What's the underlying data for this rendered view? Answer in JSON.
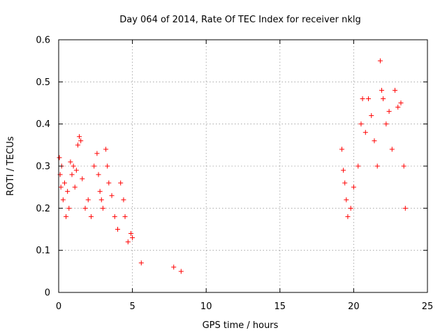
{
  "chart_data": {
    "type": "scatter",
    "title": "Day 064 of 2014, Rate Of TEC Index for receiver nklg",
    "xlabel": "GPS time / hours",
    "ylabel": "ROTI / TECUs",
    "xlim": [
      0,
      25
    ],
    "ylim": [
      0,
      0.6
    ],
    "xticks": [
      0,
      5,
      10,
      15,
      20,
      25
    ],
    "yticks": [
      0,
      0.1,
      0.2,
      0.3,
      0.4,
      0.5,
      0.6
    ],
    "x_tick_labels": [
      "0",
      "5",
      "10",
      "15",
      "20",
      "25"
    ],
    "y_tick_labels": [
      "0",
      "0.1",
      "0.2",
      "0.3",
      "0.4",
      "0.5",
      "0.6"
    ],
    "grid": true,
    "marker": "+",
    "color": "#ff0000",
    "series": [
      {
        "name": "ROTI",
        "points": [
          [
            0.05,
            0.32
          ],
          [
            0.1,
            0.28
          ],
          [
            0.15,
            0.25
          ],
          [
            0.2,
            0.3
          ],
          [
            0.3,
            0.22
          ],
          [
            0.4,
            0.26
          ],
          [
            0.5,
            0.18
          ],
          [
            0.6,
            0.24
          ],
          [
            0.7,
            0.2
          ],
          [
            0.8,
            0.31
          ],
          [
            0.9,
            0.28
          ],
          [
            1.0,
            0.3
          ],
          [
            1.1,
            0.25
          ],
          [
            1.2,
            0.29
          ],
          [
            1.3,
            0.35
          ],
          [
            1.4,
            0.37
          ],
          [
            1.5,
            0.36
          ],
          [
            1.6,
            0.27
          ],
          [
            1.8,
            0.2
          ],
          [
            2.0,
            0.22
          ],
          [
            2.2,
            0.18
          ],
          [
            2.4,
            0.3
          ],
          [
            2.6,
            0.33
          ],
          [
            2.7,
            0.28
          ],
          [
            2.8,
            0.24
          ],
          [
            2.9,
            0.22
          ],
          [
            3.0,
            0.2
          ],
          [
            3.2,
            0.34
          ],
          [
            3.3,
            0.3
          ],
          [
            3.4,
            0.26
          ],
          [
            3.6,
            0.23
          ],
          [
            3.8,
            0.18
          ],
          [
            4.0,
            0.15
          ],
          [
            4.2,
            0.26
          ],
          [
            4.4,
            0.22
          ],
          [
            4.5,
            0.18
          ],
          [
            4.7,
            0.12
          ],
          [
            4.9,
            0.14
          ],
          [
            5.0,
            0.13
          ],
          [
            5.6,
            0.07
          ],
          [
            7.8,
            0.06
          ],
          [
            8.3,
            0.05
          ],
          [
            19.2,
            0.34
          ],
          [
            19.3,
            0.29
          ],
          [
            19.4,
            0.26
          ],
          [
            19.5,
            0.22
          ],
          [
            19.6,
            0.18
          ],
          [
            19.8,
            0.2
          ],
          [
            20.0,
            0.25
          ],
          [
            20.3,
            0.3
          ],
          [
            20.5,
            0.4
          ],
          [
            20.6,
            0.46
          ],
          [
            20.8,
            0.38
          ],
          [
            21.0,
            0.46
          ],
          [
            21.2,
            0.42
          ],
          [
            21.4,
            0.36
          ],
          [
            21.6,
            0.3
          ],
          [
            21.8,
            0.55
          ],
          [
            21.9,
            0.48
          ],
          [
            22.0,
            0.46
          ],
          [
            22.2,
            0.4
          ],
          [
            22.4,
            0.43
          ],
          [
            22.6,
            0.34
          ],
          [
            22.8,
            0.48
          ],
          [
            23.0,
            0.44
          ],
          [
            23.2,
            0.45
          ],
          [
            23.4,
            0.3
          ],
          [
            23.5,
            0.2
          ]
        ]
      }
    ]
  }
}
